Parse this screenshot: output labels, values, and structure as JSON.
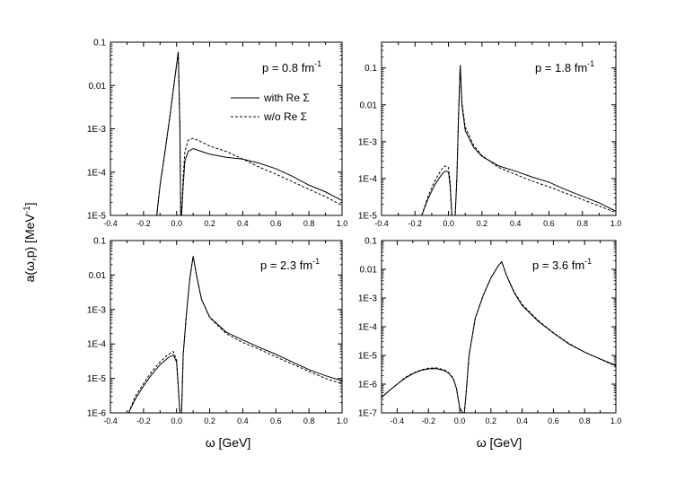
{
  "figure": {
    "ylabel_main": "a(ω,p) [MeV",
    "ylabel_sup": "-1",
    "ylabel_close": "]",
    "xlabel": "ω [GeV]"
  },
  "chart_data": [
    {
      "type": "line",
      "panel": "top-left",
      "annotation": {
        "text": "p = 0.8 fm",
        "sup": "-1"
      },
      "legend": {
        "position": "top-right",
        "entries": [
          "with Re Σ",
          "w/o Re Σ"
        ]
      },
      "xlim": [
        -0.4,
        1.0
      ],
      "ylim": [
        1e-05,
        0.1
      ],
      "yscale": "log",
      "xticks": [
        -0.4,
        -0.2,
        0.0,
        0.2,
        0.4,
        0.6,
        0.8,
        1.0
      ],
      "xticklabels": [
        "-0.4",
        "-0.2",
        "0.0",
        "0.2",
        "0.4",
        "0.6",
        "0.8",
        "1.0"
      ],
      "yticks": [
        1e-05,
        0.0001,
        0.001,
        0.01,
        0.1
      ],
      "yticklabels": [
        "1E-5",
        "1E-4",
        "1E-3",
        "0.01",
        "0.1"
      ],
      "series": [
        {
          "name": "with Re Σ",
          "style": "solid",
          "x": [
            -0.12,
            -0.1,
            -0.07,
            -0.04,
            -0.02,
            0.0,
            0.01,
            0.02,
            0.025,
            0.03,
            0.04,
            0.05,
            0.07,
            0.1,
            0.15,
            0.2,
            0.3,
            0.4,
            0.5,
            0.6,
            0.7,
            0.8,
            0.9,
            1.0
          ],
          "y": [
            1e-05,
            5e-05,
            0.0003,
            0.002,
            0.008,
            0.03,
            0.06,
            0.001,
            1e-05,
            1e-05,
            5e-05,
            0.00018,
            0.0003,
            0.00035,
            0.0003,
            0.00026,
            0.00022,
            0.0002,
            0.00016,
            0.00012,
            8e-05,
            5e-05,
            3.5e-05,
            2.2e-05
          ]
        },
        {
          "name": "w/o Re Σ",
          "style": "dashed",
          "x": [
            -0.12,
            -0.1,
            -0.07,
            -0.04,
            -0.02,
            0.0,
            0.01,
            0.02,
            0.025,
            0.03,
            0.04,
            0.05,
            0.07,
            0.1,
            0.15,
            0.2,
            0.3,
            0.4,
            0.5,
            0.6,
            0.7,
            0.8,
            0.9,
            1.0
          ],
          "y": [
            1e-05,
            5e-05,
            0.0003,
            0.002,
            0.008,
            0.03,
            0.06,
            0.001,
            1e-05,
            1e-05,
            8e-05,
            0.0003,
            0.00055,
            0.0006,
            0.0005,
            0.0004,
            0.0003,
            0.0002,
            0.00013,
            9e-05,
            6e-05,
            4e-05,
            2.7e-05,
            1.7e-05
          ]
        }
      ]
    },
    {
      "type": "line",
      "panel": "top-right",
      "annotation": {
        "text": "p = 1.8 fm",
        "sup": "-1"
      },
      "xlim": [
        -0.4,
        1.0
      ],
      "ylim": [
        1e-05,
        0.5
      ],
      "yscale": "log",
      "xticks": [
        -0.4,
        -0.2,
        0.0,
        0.2,
        0.4,
        0.6,
        0.8,
        1.0
      ],
      "xticklabels": [
        "-0.4",
        "-0.2",
        "0.0",
        "0.2",
        "0.4",
        "0.6",
        "0.8",
        "1.0"
      ],
      "yticks": [
        1e-05,
        0.0001,
        0.001,
        0.01,
        0.1
      ],
      "yticklabels": [
        "1E-5",
        "1E-4",
        "1E-3",
        "0.01",
        "0.1"
      ],
      "series": [
        {
          "name": "with Re Σ",
          "style": "solid",
          "x": [
            -0.16,
            -0.12,
            -0.08,
            -0.04,
            -0.02,
            0.0,
            0.01,
            0.02,
            0.04,
            0.05,
            0.06,
            0.07,
            0.08,
            0.1,
            0.15,
            0.2,
            0.3,
            0.4,
            0.5,
            0.6,
            0.7,
            0.8,
            0.9,
            1.0
          ],
          "y": [
            1e-05,
            3e-05,
            7e-05,
            0.00013,
            0.00016,
            0.00015,
            6e-05,
            1e-05,
            1e-05,
            0.0001,
            0.005,
            0.12,
            0.01,
            0.002,
            0.0007,
            0.0004,
            0.00022,
            0.00016,
            0.00011,
            8e-05,
            5e-05,
            3.3e-05,
            2.2e-05,
            1.3e-05
          ]
        },
        {
          "name": "w/o Re Σ",
          "style": "dashed",
          "x": [
            -0.16,
            -0.12,
            -0.08,
            -0.04,
            -0.02,
            0.0,
            0.01,
            0.02,
            0.04,
            0.05,
            0.06,
            0.07,
            0.08,
            0.1,
            0.15,
            0.2,
            0.3,
            0.4,
            0.5,
            0.6,
            0.7,
            0.8,
            0.9,
            1.0
          ],
          "y": [
            1e-05,
            3.5e-05,
            9e-05,
            0.00018,
            0.00022,
            0.0002,
            8e-05,
            1e-05,
            1e-05,
            0.0001,
            0.005,
            0.12,
            0.012,
            0.0025,
            0.0008,
            0.00042,
            0.0002,
            0.00013,
            8.5e-05,
            6e-05,
            4e-05,
            2.7e-05,
            1.8e-05,
            1.2e-05
          ]
        }
      ]
    },
    {
      "type": "line",
      "panel": "bottom-left",
      "annotation": {
        "text": "p = 2.3 fm",
        "sup": "-1"
      },
      "xlim": [
        -0.4,
        1.0
      ],
      "ylim": [
        1e-06,
        0.1
      ],
      "yscale": "log",
      "xticks": [
        -0.4,
        -0.2,
        0.0,
        0.2,
        0.4,
        0.6,
        0.8,
        1.0
      ],
      "xticklabels": [
        "-0.4",
        "-0.2",
        "0.0",
        "0.2",
        "0.4",
        "0.6",
        "0.8",
        "1.0"
      ],
      "yticks": [
        1e-06,
        1e-05,
        0.0001,
        0.001,
        0.01,
        0.1
      ],
      "yticklabels": [
        "1E-6",
        "1E-5",
        "1E-4",
        "1E-3",
        "0.01",
        "0.1"
      ],
      "series": [
        {
          "name": "with Re Σ",
          "style": "solid",
          "x": [
            -0.29,
            -0.25,
            -0.2,
            -0.15,
            -0.1,
            -0.05,
            -0.02,
            0.0,
            0.02,
            0.03,
            0.04,
            0.06,
            0.08,
            0.1,
            0.12,
            0.15,
            0.2,
            0.3,
            0.4,
            0.5,
            0.6,
            0.7,
            0.8,
            0.9,
            1.0
          ],
          "y": [
            1e-06,
            2.5e-06,
            6e-06,
            1.3e-05,
            2.5e-05,
            4e-05,
            4.8e-05,
            3e-05,
            1e-06,
            1e-06,
            5e-05,
            0.0008,
            0.008,
            0.035,
            0.01,
            0.002,
            0.0006,
            0.00022,
            0.00013,
            8e-05,
            5e-05,
            3e-05,
            1.8e-05,
            1.2e-05,
            8.5e-06
          ]
        },
        {
          "name": "w/o Re Σ",
          "style": "dashed",
          "x": [
            -0.29,
            -0.25,
            -0.2,
            -0.15,
            -0.1,
            -0.05,
            -0.02,
            0.0,
            0.02,
            0.03,
            0.04,
            0.06,
            0.08,
            0.1,
            0.12,
            0.15,
            0.2,
            0.3,
            0.4,
            0.5,
            0.6,
            0.7,
            0.8,
            0.9,
            1.0
          ],
          "y": [
            1e-06,
            3e-06,
            7e-06,
            1.6e-05,
            3e-05,
            5e-05,
            6e-05,
            3.5e-05,
            1e-06,
            1e-06,
            5e-05,
            0.0008,
            0.008,
            0.035,
            0.01,
            0.002,
            0.00058,
            0.0002,
            0.00011,
            7e-05,
            4.2e-05,
            2.6e-05,
            1.6e-05,
            1e-05,
            7e-06
          ]
        }
      ]
    },
    {
      "type": "line",
      "panel": "bottom-right",
      "annotation": {
        "text": "p = 3.6 fm",
        "sup": "-1"
      },
      "xlim": [
        -0.5,
        1.0
      ],
      "ylim": [
        1e-07,
        0.1
      ],
      "yscale": "log",
      "xticks": [
        -0.4,
        -0.2,
        0.0,
        0.2,
        0.4,
        0.6,
        0.8,
        1.0
      ],
      "xticklabels": [
        "-0.4",
        "-0.2",
        "0.0",
        "0.2",
        "0.4",
        "0.6",
        "0.8",
        "1.0"
      ],
      "yticks": [
        1e-07,
        1e-06,
        1e-05,
        0.0001,
        0.001,
        0.01,
        0.1
      ],
      "yticklabels": [
        "1E-7",
        "1E-6",
        "1E-5",
        "1E-4",
        "1E-3",
        "0.01",
        "0.1"
      ],
      "series": [
        {
          "name": "with Re Σ",
          "style": "solid",
          "x": [
            -0.5,
            -0.45,
            -0.4,
            -0.35,
            -0.3,
            -0.25,
            -0.2,
            -0.15,
            -0.1,
            -0.07,
            -0.04,
            -0.02,
            0.0,
            0.02,
            0.03,
            0.04,
            0.06,
            0.1,
            0.15,
            0.2,
            0.25,
            0.27,
            0.3,
            0.35,
            0.4,
            0.5,
            0.6,
            0.7,
            0.8,
            0.9,
            1.0
          ],
          "y": [
            3.5e-07,
            6e-07,
            1e-06,
            1.6e-06,
            2.3e-06,
            3e-06,
            3.4e-06,
            3.5e-06,
            3e-06,
            2.4e-06,
            1.5e-06,
            7e-07,
            1.5e-07,
            1e-07,
            1e-07,
            4e-07,
            1e-05,
            0.0002,
            0.0012,
            0.005,
            0.014,
            0.018,
            0.006,
            0.0015,
            0.00055,
            0.00016,
            6e-05,
            2.5e-05,
            1.3e-05,
            7.5e-06,
            4.5e-06
          ]
        },
        {
          "name": "w/o Re Σ",
          "style": "dashed",
          "x": [
            -0.5,
            -0.45,
            -0.4,
            -0.35,
            -0.3,
            -0.25,
            -0.2,
            -0.15,
            -0.1,
            -0.07,
            -0.04,
            -0.02,
            0.0,
            0.02,
            0.03,
            0.04,
            0.06,
            0.1,
            0.15,
            0.2,
            0.25,
            0.27,
            0.3,
            0.35,
            0.4,
            0.5,
            0.6,
            0.7,
            0.8,
            0.9,
            1.0
          ],
          "y": [
            3.5e-07,
            6e-07,
            1e-06,
            1.7e-06,
            2.4e-06,
            3.1e-06,
            3.6e-06,
            3.7e-06,
            3.2e-06,
            2.5e-06,
            1.6e-06,
            7e-07,
            1.5e-07,
            1e-07,
            1e-07,
            4e-07,
            1e-05,
            0.0002,
            0.0012,
            0.005,
            0.014,
            0.018,
            0.0062,
            0.0016,
            0.0006,
            0.00017,
            6.2e-05,
            2.6e-05,
            1.3e-05,
            7.5e-06,
            4.2e-06
          ]
        }
      ]
    }
  ]
}
